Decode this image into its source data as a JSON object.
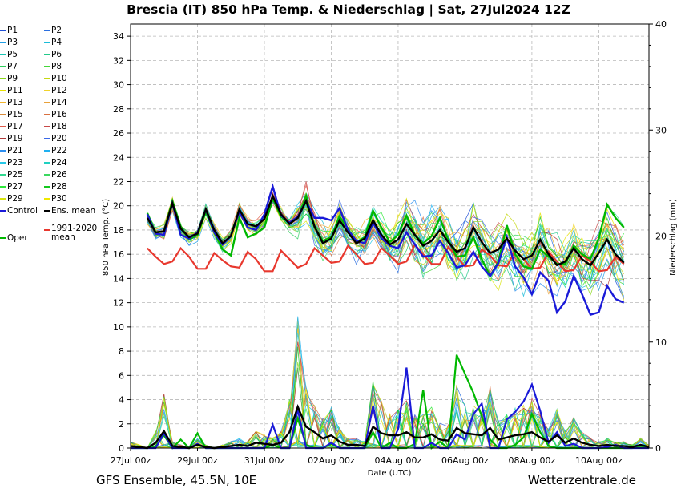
{
  "colors": {
    "members": [
      "#1f4fd6",
      "#2a6fe0",
      "#22a0e6",
      "#1bbcd8",
      "#19c5b4",
      "#22c98a",
      "#2ecf5c",
      "#44d63a",
      "#8ad81a",
      "#c6d80f",
      "#e6e000",
      "#f0d22a",
      "#f2b52e",
      "#e8a13a",
      "#d98a3a",
      "#d97040",
      "#e05a4a",
      "#c84848",
      "#b03a3a",
      "#3a68e8",
      "#2b8ef0",
      "#20b0f0",
      "#26c8e8",
      "#20d0c0",
      "#30d890",
      "#3cd860",
      "#2ee83a",
      "#14c81e",
      "#d8e40c",
      "#f0e800"
    ],
    "control": "#1a1ad8",
    "ens_mean": "#000000",
    "clim": "#e8382e",
    "oper": "#00b800"
  },
  "header": {
    "title": "Brescia  (IT)  850 hPa Temp. & Niederschlag | Sat, 27Jul2024 12Z"
  },
  "footer": {
    "model": "GFS Ensemble, 45.5N, 10E",
    "site": "Wetterzentrale.de"
  },
  "legend": {
    "rows": [
      [
        "P1",
        "P2"
      ],
      [
        "P3",
        "P4"
      ],
      [
        "P5",
        "P6"
      ],
      [
        "P7",
        "P8"
      ],
      [
        "P9",
        "P10"
      ],
      [
        "P11",
        "P12"
      ],
      [
        "P13",
        "P14"
      ],
      [
        "P15",
        "P16"
      ],
      [
        "P17",
        "P18"
      ],
      [
        "P19",
        "P20"
      ],
      [
        "P21",
        "P22"
      ],
      [
        "P23",
        "P24"
      ],
      [
        "P25",
        "P26"
      ],
      [
        "P27",
        "P28"
      ],
      [
        "P29",
        "P30"
      ],
      [
        "Control",
        "Ens. mean"
      ]
    ],
    "clim_label_1": "1991-2020",
    "clim_label_2": "mean",
    "oper_label": "Oper"
  },
  "chart_data": {
    "type": "line",
    "xlabel": "Date (UTC)",
    "ylabel": "850 hPa Temp. (°C)",
    "y2label": "Niederschlag (mm)",
    "xlim": [
      "27Jul 00z",
      "11Aug 12z"
    ],
    "x_ticks": [
      "27Jul 00z",
      "29Jul 00z",
      "31Jul 00z",
      "02Aug 00z",
      "04Aug 00z",
      "06Aug 00z",
      "08Aug 00z",
      "10Aug 00z"
    ],
    "ylim": [
      0,
      35
    ],
    "y_ticks": [
      0,
      2,
      4,
      6,
      8,
      10,
      12,
      14,
      16,
      18,
      20,
      22,
      24,
      26,
      28,
      30,
      32,
      34
    ],
    "y2lim": [
      0,
      40
    ],
    "y2_ticks": [
      0,
      10,
      20,
      30,
      40
    ],
    "grid": true,
    "time_step_hours": 6,
    "series_start": "27Jul 12z",
    "series": [
      {
        "name": "Ens. mean",
        "axis": "temp",
        "values": [
          19.0,
          17.8,
          17.9,
          20.2,
          18.1,
          17.4,
          17.7,
          19.7,
          18.0,
          16.9,
          17.5,
          19.7,
          18.5,
          18.3,
          18.9,
          20.8,
          19.3,
          18.5,
          19.0,
          20.4,
          18.3,
          16.9,
          17.3,
          18.8,
          17.8,
          16.9,
          17.3,
          18.8,
          17.6,
          16.8,
          17.2,
          18.5,
          17.6,
          16.7,
          17.1,
          18.0,
          17.0,
          16.2,
          16.5,
          18.2,
          17.0,
          16.1,
          16.4,
          17.3,
          16.3,
          15.6,
          15.9,
          17.2,
          16.0,
          15.1,
          15.4,
          16.5,
          15.6,
          15.1,
          16.1,
          17.2,
          16.0,
          15.3
        ]
      },
      {
        "name": "Control",
        "axis": "temp",
        "values": [
          19.3,
          17.7,
          17.6,
          20.2,
          17.6,
          17.3,
          17.8,
          19.7,
          17.8,
          16.8,
          17.5,
          19.5,
          18.2,
          18.0,
          19.3,
          21.6,
          19.2,
          18.6,
          19.1,
          20.4,
          19.0,
          19.0,
          18.8,
          19.8,
          18.0,
          17.1,
          16.9,
          18.6,
          17.3,
          16.7,
          16.5,
          17.8,
          16.8,
          15.8,
          15.9,
          17.1,
          16.1,
          14.9,
          15.1,
          16.2,
          15.0,
          14.2,
          15.3,
          17.4,
          15.0,
          14.1,
          12.7,
          14.5,
          13.8,
          11.2,
          12.1,
          14.2,
          12.7,
          11.0,
          11.2,
          13.4,
          12.3,
          12.0
        ]
      },
      {
        "name": "Oper",
        "axis": "temp",
        "values": [
          19.4,
          17.8,
          17.9,
          20.4,
          18.3,
          17.2,
          17.6,
          19.5,
          17.8,
          16.4,
          15.9,
          19.0,
          17.4,
          17.7,
          18.2,
          20.6,
          19.1,
          18.6,
          19.0,
          20.8,
          18.2,
          17.1,
          17.4,
          19.1,
          18.1,
          17.0,
          17.4,
          19.6,
          18.2,
          17.0,
          17.6,
          19.2,
          17.6,
          16.9,
          17.5,
          19.0,
          17.2,
          15.8,
          15.9,
          17.4,
          15.6,
          14.2,
          15.4,
          18.4,
          16.0,
          15.0,
          14.8,
          16.4,
          15.8,
          15.2,
          15.2,
          16.7,
          16.0,
          15.6,
          17.3,
          20.1,
          19.0,
          18.2
        ]
      },
      {
        "name": "1991-2020 mean",
        "axis": "temp",
        "values": [
          16.5,
          15.8,
          15.2,
          15.4,
          16.5,
          15.8,
          14.8,
          14.8,
          16.1,
          15.5,
          15.0,
          14.9,
          16.2,
          15.6,
          14.6,
          14.6,
          16.3,
          15.6,
          14.9,
          15.2,
          16.5,
          15.9,
          15.3,
          15.4,
          16.7,
          16.0,
          15.2,
          15.3,
          16.5,
          15.9,
          15.2,
          15.4,
          16.8,
          16.0,
          15.2,
          15.2,
          16.6,
          15.8,
          15.0,
          15.1,
          16.4,
          15.9,
          15.1,
          15.0,
          16.3,
          15.6,
          14.8,
          14.9,
          16.2,
          15.4,
          14.6,
          14.7,
          15.9,
          15.4,
          14.6,
          14.7,
          15.8,
          15.2
        ]
      },
      {
        "name": "Ens. mean precipitation",
        "axis": "precip",
        "values": [
          0.2,
          0.1,
          0.0,
          0.5,
          1.6,
          0.2,
          0.1,
          0.0,
          0.3,
          0.1,
          0.0,
          0.1,
          0.2,
          0.3,
          0.2,
          0.5,
          0.4,
          0.3,
          0.5,
          1.5,
          3.9,
          2.0,
          1.5,
          0.9,
          1.2,
          0.6,
          0.3,
          0.3,
          0.2,
          2.0,
          1.4,
          1.2,
          1.2,
          1.5,
          1.0,
          1.0,
          1.3,
          0.8,
          0.7,
          1.9,
          1.4,
          1.3,
          1.2,
          1.9,
          0.8,
          1.0,
          1.2,
          1.3,
          1.5,
          1.0,
          0.6,
          1.2,
          0.5,
          0.9,
          0.5,
          0.3,
          0.2,
          0.3,
          0.2,
          0.2,
          0.1,
          0.3,
          0.1
        ]
      },
      {
        "name": "Control precipitation",
        "axis": "precip",
        "values": [
          0.0,
          0.0,
          0.0,
          0.0,
          1.4,
          0.0,
          0.0,
          0.0,
          0.4,
          0.0,
          0.0,
          0.0,
          0.0,
          0.0,
          0.0,
          0.0,
          0.0,
          2.2,
          0.0,
          0.0,
          3.6,
          0.0,
          0.0,
          0.0,
          0.5,
          0.0,
          0.0,
          0.0,
          0.0,
          4.0,
          0.0,
          0.0,
          1.8,
          7.6,
          0.0,
          0.0,
          0.5,
          0.0,
          0.0,
          1.3,
          0.8,
          3.2,
          4.2,
          0.0,
          0.0,
          2.7,
          3.4,
          4.4,
          6.0,
          3.5,
          0.5,
          1.5,
          0.2,
          0.4,
          0.0,
          0.0,
          0.0,
          0.1,
          0.3,
          0.0,
          0.0,
          0.0,
          0.0
        ]
      },
      {
        "name": "Oper precipitation",
        "axis": "precip",
        "values": [
          0.0,
          0.0,
          0.0,
          0.2,
          1.2,
          0.0,
          0.8,
          0.0,
          1.4,
          0.0,
          0.0,
          0.0,
          0.0,
          0.0,
          0.0,
          0.0,
          0.0,
          0.3,
          0.0,
          0.0,
          2.8,
          0.3,
          0.0,
          0.0,
          0.4,
          0.0,
          0.0,
          0.0,
          0.0,
          1.5,
          0.0,
          0.5,
          0.0,
          0.0,
          0.4,
          5.5,
          0.0,
          0.6,
          0.0,
          8.8,
          7.0,
          5.2,
          3.0,
          0.8,
          0.0,
          0.0,
          0.3,
          1.0,
          3.2,
          1.5,
          0.2,
          0.0,
          0.0,
          0.0,
          0.0,
          0.0,
          0.0,
          0.0,
          0.0,
          0.0,
          0.0,
          0.2,
          0.0
        ]
      }
    ]
  }
}
